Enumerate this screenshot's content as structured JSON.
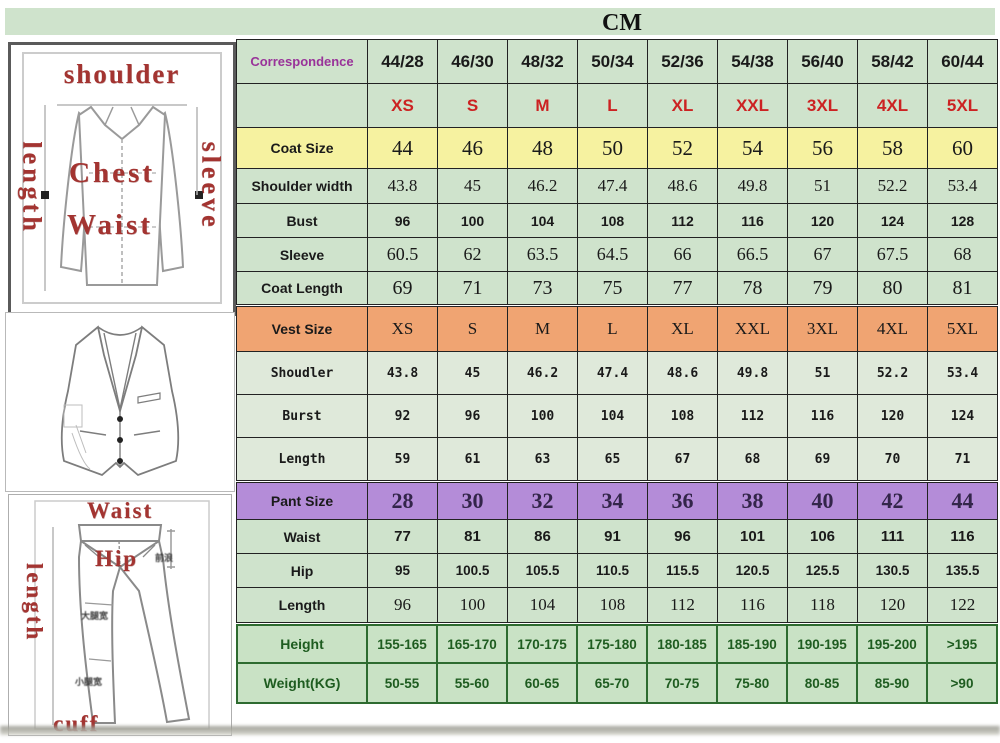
{
  "title": "CM",
  "colors": {
    "table_green": "#cfe3cc",
    "vest_row_green": "#dfe9da",
    "coat_size_yellow": "#f6f2a0",
    "vest_size_orange": "#f0a472",
    "pant_size_purple": "#b48cd8",
    "size_red": "#cc2222",
    "correspondence_purple": "#993399",
    "body_dark_green": "#1e5c20",
    "diagram_label_red": "#a33431"
  },
  "table": {
    "rows": [
      {
        "key": "correspondence",
        "label": "Correspondence",
        "values": [
          "44/28",
          "46/30",
          "48/32",
          "50/34",
          "52/36",
          "54/38",
          "56/40",
          "58/42",
          "60/44"
        ]
      },
      {
        "key": "sizes",
        "label": "",
        "values": [
          "XS",
          "S",
          "M",
          "L",
          "XL",
          "XXL",
          "3XL",
          "4XL",
          "5XL"
        ]
      },
      {
        "key": "coat-size",
        "label": "Coat Size",
        "values": [
          "44",
          "46",
          "48",
          "50",
          "52",
          "54",
          "56",
          "58",
          "60"
        ]
      },
      {
        "key": "shoulder-width",
        "label": "Shoulder width",
        "values": [
          "43.8",
          "45",
          "46.2",
          "47.4",
          "48.6",
          "49.8",
          "51",
          "52.2",
          "53.4"
        ]
      },
      {
        "key": "bust",
        "label": "Bust",
        "values": [
          "96",
          "100",
          "104",
          "108",
          "112",
          "116",
          "120",
          "124",
          "128"
        ]
      },
      {
        "key": "sleeve",
        "label": "Sleeve",
        "values": [
          "60.5",
          "62",
          "63.5",
          "64.5",
          "66",
          "66.5",
          "67",
          "67.5",
          "68"
        ]
      },
      {
        "key": "coat-length",
        "label": "Coat Length",
        "values": [
          "69",
          "71",
          "73",
          "75",
          "77",
          "78",
          "79",
          "80",
          "81"
        ]
      },
      {
        "key": "vest-size",
        "label": "Vest Size",
        "values": [
          "XS",
          "S",
          "M",
          "L",
          "XL",
          "XXL",
          "3XL",
          "4XL",
          "5XL"
        ]
      },
      {
        "key": "vest-shoulder",
        "label": "Shoudler",
        "values": [
          "43.8",
          "45",
          "46.2",
          "47.4",
          "48.6",
          "49.8",
          "51",
          "52.2",
          "53.4"
        ]
      },
      {
        "key": "vest-bust",
        "label": "Burst",
        "values": [
          "92",
          "96",
          "100",
          "104",
          "108",
          "112",
          "116",
          "120",
          "124"
        ]
      },
      {
        "key": "vest-length",
        "label": "Length",
        "values": [
          "59",
          "61",
          "63",
          "65",
          "67",
          "68",
          "69",
          "70",
          "71"
        ]
      },
      {
        "key": "pant-size",
        "label": "Pant Size",
        "values": [
          "28",
          "30",
          "32",
          "34",
          "36",
          "38",
          "40",
          "42",
          "44"
        ]
      },
      {
        "key": "pant-waist",
        "label": "Waist",
        "values": [
          "77",
          "81",
          "86",
          "91",
          "96",
          "101",
          "106",
          "111",
          "116"
        ]
      },
      {
        "key": "pant-hip",
        "label": "Hip",
        "values": [
          "95",
          "100.5",
          "105.5",
          "110.5",
          "115.5",
          "120.5",
          "125.5",
          "130.5",
          "135.5"
        ]
      },
      {
        "key": "pant-length",
        "label": "Length",
        "values": [
          "96",
          "100",
          "104",
          "108",
          "112",
          "116",
          "118",
          "120",
          "122"
        ]
      },
      {
        "key": "height",
        "label": "Height",
        "values": [
          "155-165",
          "165-170",
          "170-175",
          "175-180",
          "180-185",
          "185-190",
          "190-195",
          "195-200",
          ">195"
        ]
      },
      {
        "key": "weight",
        "label": "Weight(KG)",
        "values": [
          "50-55",
          "55-60",
          "60-65",
          "65-70",
          "70-75",
          "75-80",
          "80-85",
          "85-90",
          ">90"
        ]
      }
    ]
  },
  "diagrams": {
    "jacket": {
      "shoulder": "shoulder",
      "length": "length",
      "sleeve": "sleeve",
      "chest": "Chest",
      "waist": "Waist"
    },
    "pants": {
      "waist": "Waist",
      "length": "length",
      "hip": "Hip",
      "cuff": "cuff",
      "annotation_right": "前浪",
      "annotation_thigh": "大腿宽",
      "annotation_calf": "小腿宽"
    }
  }
}
